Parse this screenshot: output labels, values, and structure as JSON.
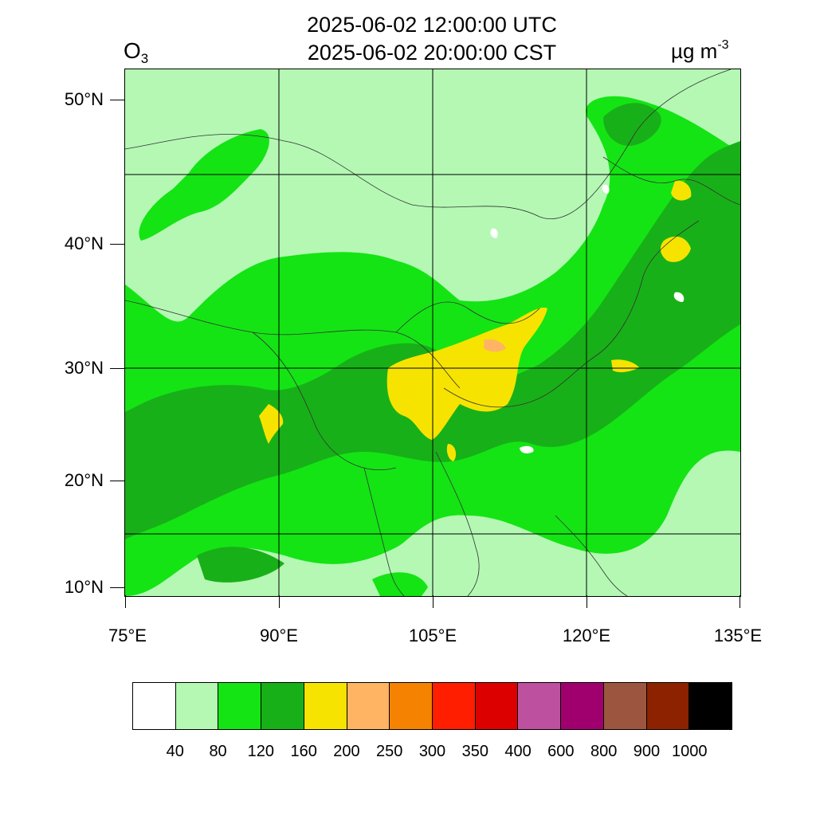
{
  "header": {
    "title_utc": "2025-06-02 12:00:00 UTC",
    "title_cst": "2025-06-02 20:00:00 CST",
    "species_base": "O",
    "species_sub": "3",
    "units_base": "µg m",
    "units_sup": "-3"
  },
  "map": {
    "lon_range": [
      75,
      135
    ],
    "lat_range": [
      9,
      52.3
    ],
    "lat_ticks": [
      "10°N",
      "20°N",
      "30°N",
      "40°N",
      "50°N"
    ],
    "lon_ticks": [
      "75°E",
      "90°E",
      "105°E",
      "120°E",
      "135°E"
    ],
    "gridlines": true
  },
  "colorbar": {
    "levels": [
      "40",
      "80",
      "120",
      "160",
      "200",
      "250",
      "300",
      "350",
      "400",
      "600",
      "800",
      "900",
      "1000"
    ],
    "colors": [
      "#ffffff",
      "#b4f8b4",
      "#14e414",
      "#18b018",
      "#f6e400",
      "#ffb464",
      "#f58200",
      "#ff1e00",
      "#dc0000",
      "#be50a0",
      "#a0006e",
      "#9c5640",
      "#8c2200",
      "#000000"
    ]
  }
}
